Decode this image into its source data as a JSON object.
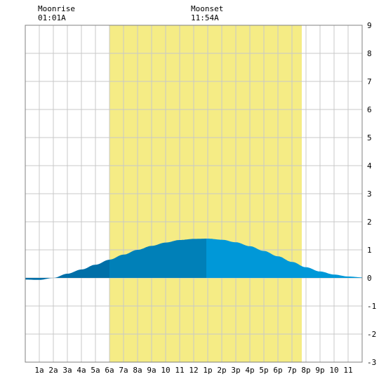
{
  "header": {
    "moonrise_label": "Moonrise",
    "moonrise_time": "01:01A",
    "moonset_label": "Moonset",
    "moonset_time": "11:54A"
  },
  "colors": {
    "daylight": "#f5ec85",
    "tide_day_before_noon": "#0080b8",
    "tide_day_after_noon": "#0098d8",
    "tide_night": "#006fa8",
    "grid": "#c8c8c8",
    "border": "#808080"
  },
  "chart_data": {
    "type": "area",
    "x_tick_labels": [
      "1a",
      "2a",
      "3a",
      "4a",
      "5a",
      "6a",
      "7a",
      "8a",
      "9a",
      "10",
      "11",
      "12",
      "1p",
      "2p",
      "3p",
      "4p",
      "5p",
      "6p",
      "7p",
      "8p",
      "9p",
      "10",
      "11"
    ],
    "y_tick_labels": [
      "9",
      "8",
      "7",
      "6",
      "5",
      "4",
      "3",
      "2",
      "1",
      "0",
      "-1",
      "-2",
      "-3"
    ],
    "xlim": [
      0,
      24
    ],
    "ylim": [
      -3,
      9
    ],
    "daylight_hours": [
      6,
      19.7
    ],
    "high_tide": {
      "hour": 12.9,
      "height": 1.4
    },
    "low_tide": {
      "hour": 0.5,
      "height": -0.08
    },
    "tide_series": {
      "hours": [
        0,
        1,
        2,
        3,
        4,
        5,
        6,
        7,
        8,
        9,
        10,
        11,
        12,
        13,
        14,
        15,
        16,
        17,
        18,
        19,
        20,
        21,
        22,
        23,
        24
      ],
      "heights": [
        -0.06,
        -0.07,
        0.0,
        0.15,
        0.3,
        0.47,
        0.65,
        0.83,
        1.0,
        1.14,
        1.26,
        1.35,
        1.39,
        1.4,
        1.36,
        1.27,
        1.13,
        0.96,
        0.77,
        0.57,
        0.38,
        0.23,
        0.12,
        0.05,
        0.02
      ]
    }
  }
}
